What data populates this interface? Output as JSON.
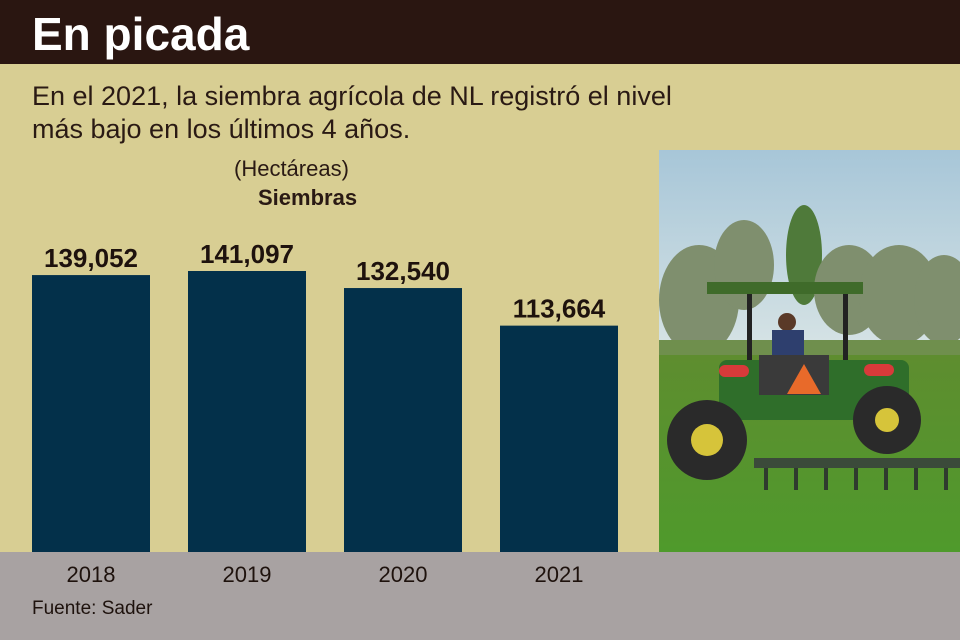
{
  "header": {
    "title": "En picada"
  },
  "subtitle": "En el 2021, la siembra agrícola de NL registró el nivel más bajo en los últimos 4 años.",
  "source": "Fuente: Sader",
  "colors": {
    "bar": "#03304a",
    "background": "#d8ce93",
    "header": "#2a1611",
    "footer": "#a8a2a2"
  },
  "chart_data": {
    "type": "bar",
    "unit_label": "(Hectáreas)",
    "series_label": "Siembras",
    "categories": [
      "2018",
      "2019",
      "2020",
      "2021"
    ],
    "values": [
      139052,
      141097,
      132540,
      113664
    ],
    "value_labels": [
      "139,052",
      "141,097",
      "132,540",
      "113,664"
    ],
    "series": [
      {
        "name": "Siembras",
        "values": [
          139052,
          141097,
          132540,
          113664
        ]
      }
    ],
    "ylim": [
      0,
      141097
    ],
    "grid": false,
    "legend": "none"
  },
  "photo": {
    "description_icon": "tractor-photo"
  }
}
